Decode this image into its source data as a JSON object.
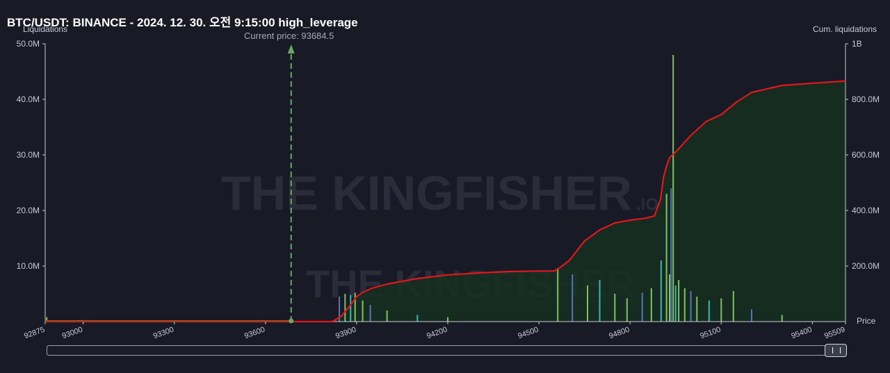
{
  "header": {
    "title": "BTC/USDT: BINANCE - 2024. 12. 30. 오전 9:15:00 high_leverage",
    "left_axis_caption": "Liquidations",
    "right_axis_caption": "Cum. liquidations",
    "current_price_label": "Current price: 93684.5",
    "x_axis_caption": "Price"
  },
  "watermark": {
    "brand": "THE KINGFISHER",
    "suffix": ".IO"
  },
  "colors": {
    "background": "#181a26",
    "cumulative_line": "#e3161c",
    "cumulative_fill": "#163020",
    "baseline_green": "#2e9a2e",
    "current_price_marker": "#6aa86a",
    "bar_green": "#8fd06a",
    "bar_blue": "#5a7ec8",
    "bar_cyan": "#3ec7c0"
  },
  "chart_data": {
    "type": "bar",
    "title": "BTC/USDT: BINANCE - 2024. 12. 30. 오전 9:15:00 high_leverage",
    "xlabel": "Price",
    "ylabel": "Liquidations",
    "y2label": "Cum. liquidations",
    "xlim": [
      92875,
      95509
    ],
    "ylim": [
      0,
      50000000
    ],
    "y2lim": [
      0,
      1000000000
    ],
    "x_ticks": [
      92875,
      93000,
      93300,
      93600,
      93900,
      94200,
      94500,
      94800,
      95100,
      95400,
      95509
    ],
    "x_tick_labels": [
      "92875",
      "93000",
      "93300",
      "93600",
      "93900",
      "94200",
      "94500",
      "94800",
      "95100",
      "95400",
      "95509"
    ],
    "y_ticks": [
      10000000,
      20000000,
      30000000,
      40000000,
      50000000
    ],
    "y_tick_labels": [
      "10.0M",
      "20.0M",
      "30.0M",
      "40.0M",
      "50.0M"
    ],
    "y2_ticks": [
      200000000,
      400000000,
      600000000,
      800000000,
      1000000000
    ],
    "y2_tick_labels": [
      "200.0M",
      "400.0M",
      "600.0M",
      "800.0M",
      "1B"
    ],
    "current_price": 93684.5,
    "grid": false,
    "series": [
      {
        "name": "Cum. liquidations",
        "type": "line",
        "axis": "right",
        "x": [
          92875,
          93684.5,
          93820,
          93850,
          93880,
          93900,
          93920,
          93950,
          94000,
          94100,
          94200,
          94300,
          94400,
          94500,
          94550,
          94570,
          94600,
          94650,
          94700,
          94750,
          94800,
          94850,
          94880,
          94900,
          94910,
          94920,
          94930,
          94950,
          95000,
          95050,
          95100,
          95150,
          95200,
          95300,
          95400,
          95509
        ],
        "values": [
          0,
          0,
          0,
          20000000,
          60000000,
          90000000,
          105000000,
          120000000,
          135000000,
          155000000,
          168000000,
          175000000,
          180000000,
          182000000,
          182000000,
          195000000,
          220000000,
          290000000,
          330000000,
          355000000,
          365000000,
          372000000,
          380000000,
          440000000,
          520000000,
          560000000,
          590000000,
          610000000,
          670000000,
          720000000,
          745000000,
          790000000,
          825000000,
          850000000,
          858000000,
          866000000
        ]
      },
      {
        "name": "Liquidations",
        "type": "bar",
        "axis": "left",
        "x": [
          92880,
          93843,
          93862,
          93880,
          93895,
          93920,
          93945,
          94000,
          94100,
          94200,
          94562,
          94610,
          94660,
          94700,
          94750,
          94790,
          94840,
          94870,
          94902,
          94920,
          94930,
          94935,
          94942,
          94950,
          94960,
          94980,
          95000,
          95020,
          95060,
          95100,
          95140,
          95200,
          95300
        ],
        "values": [
          800000,
          4500000,
          5000000,
          4800000,
          5200000,
          3800000,
          3000000,
          2000000,
          1200000,
          800000,
          9500000,
          8500000,
          6500000,
          7500000,
          5000000,
          4200000,
          5200000,
          6000000,
          11000000,
          23000000,
          8500000,
          24000000,
          48000000,
          6500000,
          7500000,
          6000000,
          5500000,
          4500000,
          3800000,
          4200000,
          5500000,
          2200000,
          1200000
        ]
      }
    ]
  }
}
